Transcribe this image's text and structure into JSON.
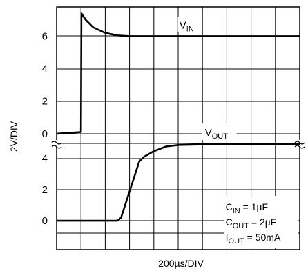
{
  "chart_data": {
    "type": "line",
    "xlabel": "200µs/DIV",
    "ylabel": "2V/DIV",
    "grid": true,
    "x_divisions": 10,
    "panels": [
      {
        "name": "top",
        "y_ticks": [
          "6",
          "4",
          "2",
          "0"
        ],
        "y_tick_values": [
          6,
          4,
          2,
          0
        ],
        "ylim": [
          -0.6,
          7.8
        ],
        "series": [
          {
            "label_main": "V",
            "label_sub": "IN",
            "points": [
              [
                0,
                0
              ],
              [
                1,
                0.1
              ],
              [
                1.02,
                7.4
              ],
              [
                1.2,
                7.0
              ],
              [
                1.5,
                6.55
              ],
              [
                2,
                6.2
              ],
              [
                2.5,
                6.05
              ],
              [
                3,
                6.0
              ],
              [
                10,
                6.0
              ]
            ]
          }
        ]
      },
      {
        "name": "bottom",
        "y_ticks": [
          "4",
          "2",
          "0"
        ],
        "y_tick_values": [
          4,
          2,
          0
        ],
        "ylim": [
          -1.85,
          4.95
        ],
        "series": [
          {
            "label_main": "V",
            "label_sub": "OUT",
            "points": [
              [
                0,
                0
              ],
              [
                2.5,
                0
              ],
              [
                2.65,
                0.2
              ],
              [
                3.4,
                3.8
              ],
              [
                3.6,
                4.1
              ],
              [
                4,
                4.45
              ],
              [
                4.5,
                4.75
              ],
              [
                5,
                4.85
              ],
              [
                6,
                4.88
              ],
              [
                10,
                4.9
              ]
            ]
          }
        ]
      }
    ],
    "annotations": [
      {
        "main": "C",
        "sub": "IN",
        "rest": " = 1µF"
      },
      {
        "main": "C",
        "sub": "OUT",
        "rest": " = 2µF"
      },
      {
        "main": "I",
        "sub": "OUT",
        "rest": " = 50mA"
      }
    ]
  }
}
